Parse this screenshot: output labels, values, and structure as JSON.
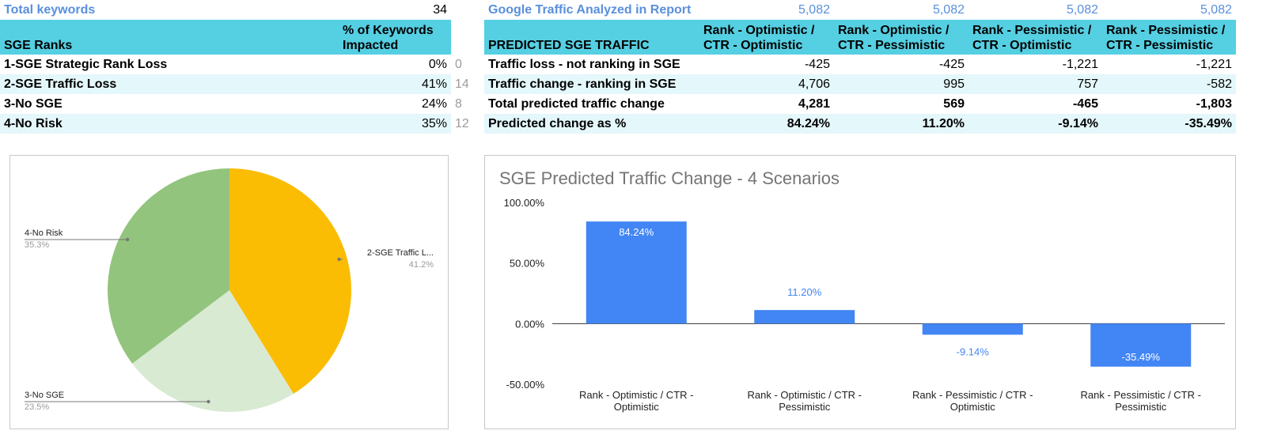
{
  "left_table": {
    "total_label": "Total keywords",
    "total_value": "34",
    "header_col1": "SGE Ranks",
    "header_col2_line1": "% of Keywords",
    "header_col2_line2": "Impacted",
    "rows": [
      {
        "label": "1-SGE Strategic Rank Loss",
        "pct": "0%",
        "count": "0"
      },
      {
        "label": "2-SGE Traffic Loss",
        "pct": "41%",
        "count": "14"
      },
      {
        "label": "3-No SGE",
        "pct": "24%",
        "count": "8"
      },
      {
        "label": "4-No Risk",
        "pct": "35%",
        "count": "12"
      }
    ]
  },
  "right_table": {
    "traffic_label": "Google Traffic Analyzed in Report",
    "traffic_values": [
      "5,082",
      "5,082",
      "5,082",
      "5,082"
    ],
    "header_label": "PREDICTED SGE TRAFFIC",
    "scenarios": [
      {
        "line1": "Rank - Optimistic /",
        "line2": "CTR - Optimistic"
      },
      {
        "line1": "Rank - Optimistic /",
        "line2": "CTR - Pessimistic"
      },
      {
        "line1": "Rank - Pessimistic /",
        "line2": "CTR - Optimistic"
      },
      {
        "line1": "Rank - Pessimistic /",
        "line2": "CTR - Pessimistic"
      }
    ],
    "rows": [
      {
        "label": "Traffic loss - not ranking in SGE",
        "values": [
          "-425",
          "-425",
          "-1,221",
          "-1,221"
        ]
      },
      {
        "label": "Traffic change - ranking in SGE",
        "values": [
          "4,706",
          "995",
          "757",
          "-582"
        ]
      },
      {
        "label": "Total predicted traffic change",
        "values": [
          "4,281",
          "569",
          "-465",
          "-1,803"
        ]
      },
      {
        "label": "Predicted change as %",
        "values": [
          "84.24%",
          "11.20%",
          "-9.14%",
          "-35.49%"
        ]
      }
    ]
  },
  "colors": {
    "header_bg": "#55cfe2",
    "row_shade": "#e4f7fa",
    "blue_text": "#5a8fdc",
    "bar": "#4285f4",
    "pie_traffic_loss": "#fbbc04",
    "pie_no_sge": "#d9ead3",
    "pie_no_risk": "#93c47d"
  },
  "chart_data": [
    {
      "type": "pie",
      "title": "",
      "slices": [
        {
          "label": "2-SGE Traffic L...",
          "value": 41.2,
          "pct_label": "41.2%",
          "color": "#fbbc04"
        },
        {
          "label": "3-No SGE",
          "value": 23.5,
          "pct_label": "23.5%",
          "color": "#d9ead3"
        },
        {
          "label": "4-No Risk",
          "value": 35.3,
          "pct_label": "35.3%",
          "color": "#93c47d"
        }
      ]
    },
    {
      "type": "bar",
      "title": "SGE Predicted Traffic Change - 4 Scenarios",
      "categories": [
        [
          "Rank - Optimistic / CTR -",
          "Optimistic"
        ],
        [
          "Rank - Optimistic / CTR -",
          "Pessimistic"
        ],
        [
          "Rank - Pessimistic / CTR -",
          "Optimistic"
        ],
        [
          "Rank - Pessimistic / CTR -",
          "Pessimistic"
        ]
      ],
      "values": [
        84.24,
        11.2,
        -9.14,
        -35.49
      ],
      "value_labels": [
        "84.24%",
        "11.20%",
        "-9.14%",
        "-35.49%"
      ],
      "yticks": [
        100,
        50,
        0,
        -50
      ],
      "ytick_labels": [
        "100.00%",
        "50.00%",
        "0.00%",
        "-50.00%"
      ],
      "ylim": [
        -50,
        100
      ],
      "xlabel": "",
      "ylabel": "",
      "grid": false
    }
  ]
}
